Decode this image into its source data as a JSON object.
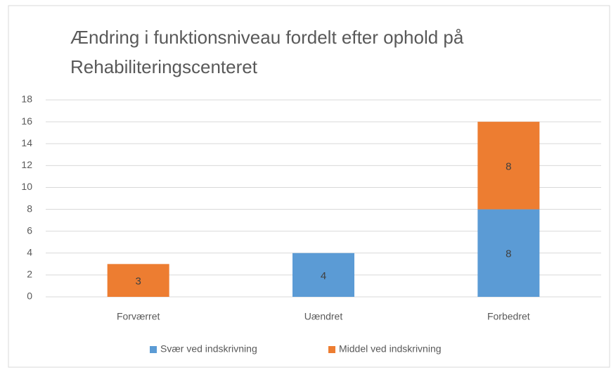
{
  "chart_data": {
    "type": "stacked_bar",
    "title": [
      "Ændring i funktionsniveau fordelt efter ophold på",
      "Rehabiliteringscenteret"
    ],
    "categories": [
      "Forværret",
      "Uændret",
      "Forbedret"
    ],
    "series": [
      {
        "name": "Svær ved indskrivning",
        "color": "#5b9bd5",
        "values": [
          null,
          4,
          8
        ]
      },
      {
        "name": "Middel ved indskrivning",
        "color": "#ed7d31",
        "values": [
          3,
          null,
          8
        ]
      }
    ],
    "ylim": [
      0,
      18
    ],
    "yticks": [
      0,
      2,
      4,
      6,
      8,
      10,
      12,
      14,
      16,
      18
    ],
    "grid": true,
    "legend": "bottom"
  }
}
